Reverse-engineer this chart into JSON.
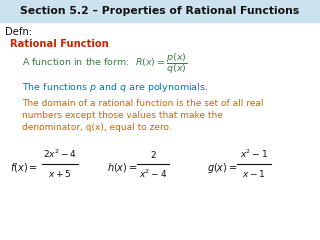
{
  "title": "Section 5.2 – Properties of Rational Functions",
  "title_bg": "#cce3ef",
  "title_color": "#111111",
  "defn_label": "Defn:",
  "defn_color": "#111111",
  "red_label": "Rational Function",
  "red_color": "#cc2200",
  "green_line1": "A function in the form:  $R(x) = \\dfrac{p(x)}{q(x)}$",
  "green_color": "#3a7d44",
  "teal_line1": "The functions $p$ and $q$ are polynomials.",
  "teal_color": "#0077aa",
  "orange_line1": "The domain of a rational function is the set of all real",
  "orange_line2": "numbers except those values that make the",
  "orange_line3": "denominator, q(x), equal to zero.",
  "orange_color": "#cc6600",
  "formula_color": "#111111",
  "f_num": "$2x^2-4$",
  "f_den": "$x+5$",
  "f_lbl": "$f(x)=$",
  "h_num": "$2$",
  "h_den": "$x^2-4$",
  "h_lbl": "$h(x)=$",
  "g_num": "$x^2-1$",
  "g_den": "$x-1$",
  "g_lbl": "$g(x)=$",
  "bg_color": "#ffffff"
}
